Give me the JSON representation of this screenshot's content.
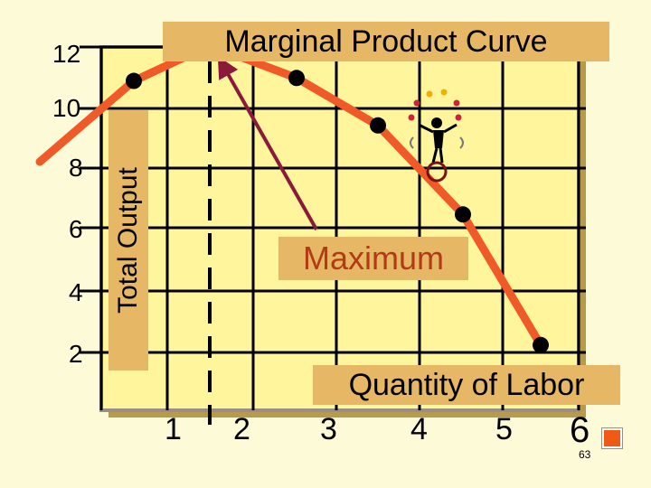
{
  "chart_data": {
    "type": "line",
    "title": "Marginal Product Curve",
    "xlabel": "Quantity of Labor",
    "ylabel": "Total Output",
    "x": [
      1,
      2,
      3,
      4,
      5,
      6
    ],
    "x_tick_labels": [
      "1",
      "2",
      "3",
      "4",
      "5",
      "6"
    ],
    "y_tick_labels": [
      "2",
      "4",
      "6",
      "8",
      "10",
      "12"
    ],
    "series": [
      {
        "values": [
          11.1,
          12.3,
          11.2,
          9.6,
          6.6,
          2.2
        ]
      }
    ],
    "ylim": [
      0,
      12
    ],
    "grid": true,
    "annotations": [
      {
        "text": "Maximum",
        "points_to_x": 2
      }
    ],
    "colors": {
      "line": "#f05a28",
      "marker": "#000000",
      "grid": "#000000",
      "plot_background": "#fff59c",
      "label_box": "#e6b765",
      "arrow": "#8b1a3a",
      "annotation_text": "#b33a17"
    }
  },
  "page_number": "63"
}
